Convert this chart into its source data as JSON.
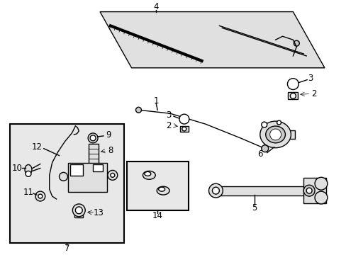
{
  "bg_color": "#ffffff",
  "line_color": "#000000",
  "gray_fill": "#c8c8c8",
  "light_fill": "#e0e0e0",
  "box_fill": "#e8e8e8",
  "dark_fill": "#a0a0a0",
  "font_size": 8.5
}
